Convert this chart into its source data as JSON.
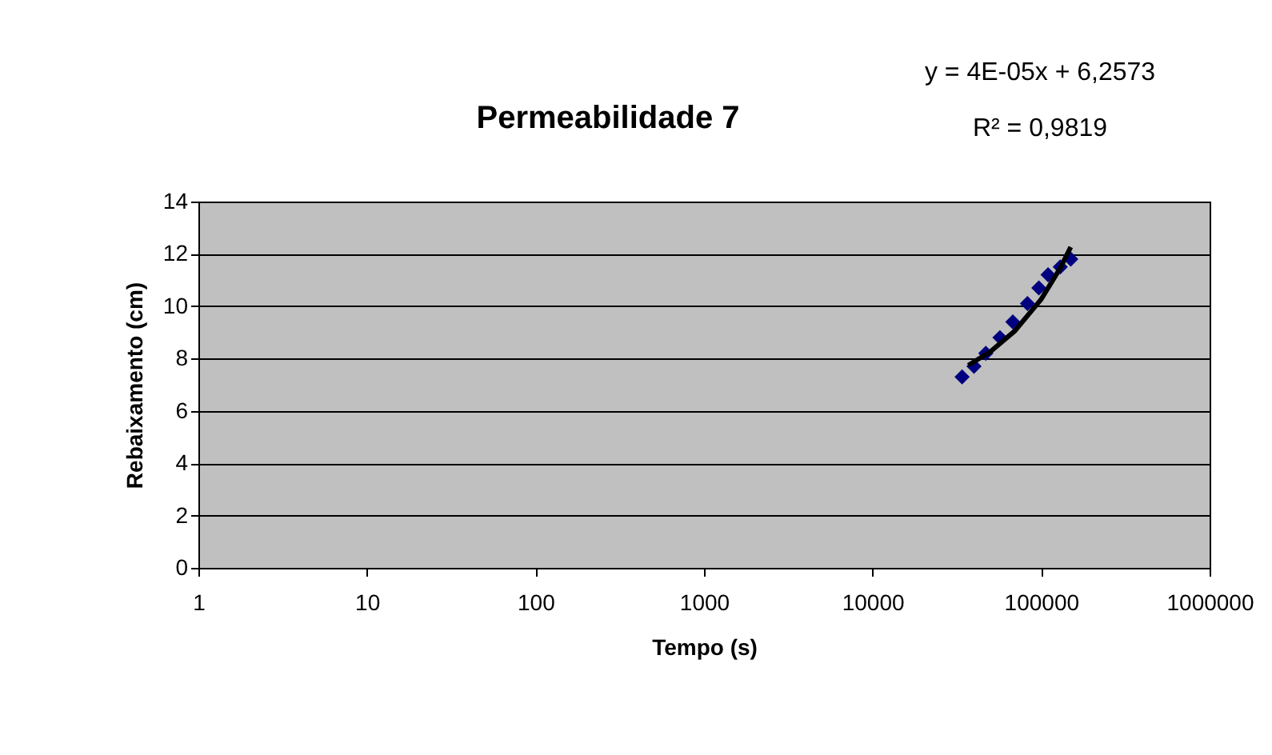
{
  "chart_data": {
    "type": "scatter",
    "title": "Permeabilidade 7",
    "xlabel": "Tempo (s)",
    "ylabel": "Rebaixamento (cm)",
    "log": "x",
    "xlim": [
      1,
      1000000
    ],
    "xticks": [
      1,
      10,
      100,
      1000,
      10000,
      100000,
      1000000
    ],
    "ylim": [
      0,
      14
    ],
    "yticks": [
      0,
      2,
      4,
      6,
      8,
      10,
      12,
      14
    ],
    "grid": "y",
    "legend": false,
    "annotations": [
      "y = 4E-05x + 6,2573",
      "R² = 0,9819"
    ],
    "series": [
      {
        "color": "#000080",
        "marker": "diamond",
        "x": [
          34000,
          40000,
          47000,
          57000,
          68000,
          83000,
          97000,
          110000,
          130000,
          150000
        ],
        "values": [
          7.3,
          7.7,
          8.2,
          8.8,
          9.4,
          10.1,
          10.7,
          11.2,
          11.5,
          11.8
        ]
      },
      {
        "type": "line",
        "color": "#000000",
        "line_style": "solid",
        "x": [
          37000,
          50000,
          70000,
          100000,
          130000,
          150000
        ],
        "values": [
          7.74,
          8.26,
          9.06,
          10.26,
          11.46,
          12.26
        ]
      }
    ]
  }
}
